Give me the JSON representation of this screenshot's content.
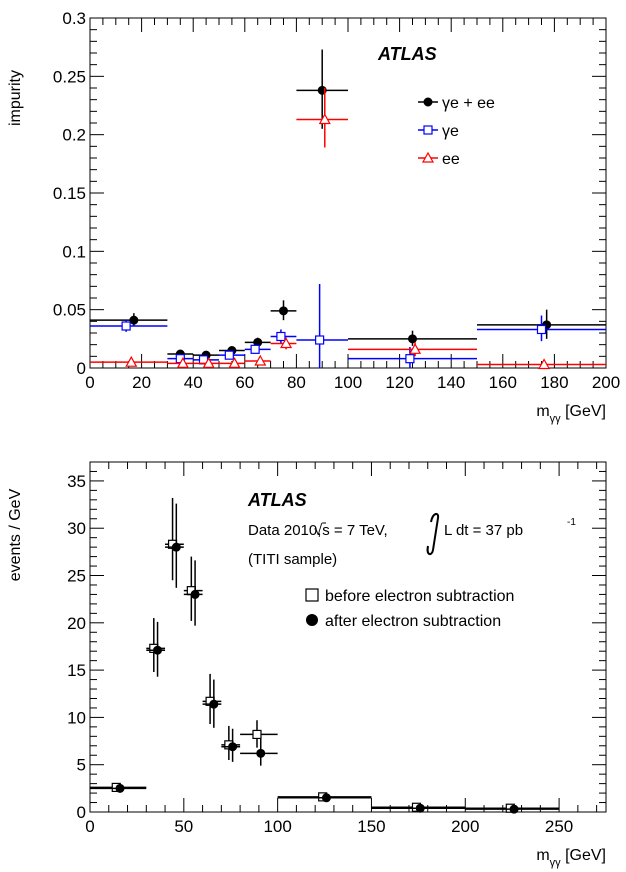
{
  "chart_data": [
    {
      "type": "scatter",
      "title": "",
      "xlabel": "m_{γγ} [GeV]",
      "ylabel": "impurity",
      "xlim": [
        0,
        200
      ],
      "ylim": [
        0,
        0.3
      ],
      "x_ticks": [
        0,
        20,
        40,
        60,
        80,
        100,
        120,
        140,
        160,
        180,
        200
      ],
      "x_tick_labels": [
        "0",
        "20",
        "40",
        "60",
        "80",
        "100",
        "120",
        "140",
        "160",
        "180",
        "200"
      ],
      "y_ticks": [
        0,
        0.05,
        0.1,
        0.15,
        0.2,
        0.25,
        0.3
      ],
      "y_tick_labels": [
        "0",
        "0.05",
        "0.1",
        "0.15",
        "0.2",
        "0.25",
        "0.3"
      ],
      "grid": false,
      "legend_position": "top-right",
      "annotations": {
        "atlas": "ATLAS"
      },
      "series": [
        {
          "name": "γe + ee",
          "marker": "filled-circle",
          "color": "#000000",
          "points": [
            {
              "x": 17,
              "xlo": 0,
              "xhi": 30,
              "y": 0.041,
              "elo": 0.005,
              "ehi": 0.006
            },
            {
              "x": 35,
              "xlo": 30,
              "xhi": 40,
              "y": 0.012,
              "elo": 0.002,
              "ehi": 0.002
            },
            {
              "x": 45,
              "xlo": 40,
              "xhi": 50,
              "y": 0.011,
              "elo": 0.002,
              "ehi": 0.002
            },
            {
              "x": 55,
              "xlo": 50,
              "xhi": 60,
              "y": 0.015,
              "elo": 0.003,
              "ehi": 0.003
            },
            {
              "x": 65,
              "xlo": 60,
              "xhi": 70,
              "y": 0.022,
              "elo": 0.004,
              "ehi": 0.004
            },
            {
              "x": 75,
              "xlo": 70,
              "xhi": 80,
              "y": 0.049,
              "elo": 0.008,
              "ehi": 0.009
            },
            {
              "x": 90,
              "xlo": 80,
              "xhi": 100,
              "y": 0.238,
              "elo": 0.033,
              "ehi": 0.035
            },
            {
              "x": 125,
              "xlo": 100,
              "xhi": 150,
              "y": 0.025,
              "elo": 0.006,
              "ehi": 0.007
            },
            {
              "x": 177,
              "xlo": 150,
              "xhi": 200,
              "y": 0.037,
              "elo": 0.012,
              "ehi": 0.013
            }
          ]
        },
        {
          "name": "γe",
          "marker": "open-square",
          "color": "#0000ff",
          "points": [
            {
              "x": 14,
              "xlo": 0,
              "xhi": 30,
              "y": 0.036,
              "elo": 0.005,
              "ehi": 0.005
            },
            {
              "x": 35,
              "xlo": 30,
              "xhi": 40,
              "y": 0.008,
              "elo": 0.002,
              "ehi": 0.002
            },
            {
              "x": 44,
              "xlo": 40,
              "xhi": 50,
              "y": 0.007,
              "elo": 0.002,
              "ehi": 0.002
            },
            {
              "x": 54,
              "xlo": 50,
              "xhi": 60,
              "y": 0.011,
              "elo": 0.002,
              "ehi": 0.002
            },
            {
              "x": 64,
              "xlo": 60,
              "xhi": 70,
              "y": 0.016,
              "elo": 0.003,
              "ehi": 0.003
            },
            {
              "x": 74,
              "xlo": 70,
              "xhi": 80,
              "y": 0.027,
              "elo": 0.006,
              "ehi": 0.006
            },
            {
              "x": 89,
              "xlo": 80,
              "xhi": 100,
              "y": 0.024,
              "elo": 0.024,
              "ehi": 0.048
            },
            {
              "x": 124,
              "xlo": 100,
              "xhi": 150,
              "y": 0.008,
              "elo": 0.008,
              "ehi": 0.01
            },
            {
              "x": 175,
              "xlo": 150,
              "xhi": 200,
              "y": 0.033,
              "elo": 0.01,
              "ehi": 0.012
            }
          ]
        },
        {
          "name": "ee",
          "marker": "open-triangle",
          "color": "#ff0000",
          "points": [
            {
              "x": 16,
              "xlo": 0,
              "xhi": 30,
              "y": 0.005,
              "elo": 0.002,
              "ehi": 0.002
            },
            {
              "x": 36,
              "xlo": 30,
              "xhi": 40,
              "y": 0.004,
              "elo": 0.001,
              "ehi": 0.001
            },
            {
              "x": 46,
              "xlo": 40,
              "xhi": 50,
              "y": 0.004,
              "elo": 0.001,
              "ehi": 0.001
            },
            {
              "x": 56,
              "xlo": 50,
              "xhi": 60,
              "y": 0.004,
              "elo": 0.001,
              "ehi": 0.001
            },
            {
              "x": 66,
              "xlo": 60,
              "xhi": 70,
              "y": 0.006,
              "elo": 0.002,
              "ehi": 0.002
            },
            {
              "x": 76,
              "xlo": 70,
              "xhi": 80,
              "y": 0.021,
              "elo": 0.005,
              "ehi": 0.005
            },
            {
              "x": 91,
              "xlo": 80,
              "xhi": 100,
              "y": 0.213,
              "elo": 0.024,
              "ehi": 0.027
            },
            {
              "x": 126,
              "xlo": 100,
              "xhi": 150,
              "y": 0.016,
              "elo": 0.006,
              "ehi": 0.006
            },
            {
              "x": 176,
              "xlo": 150,
              "xhi": 200,
              "y": 0.003,
              "elo": 0.001,
              "ehi": 0.001
            }
          ]
        }
      ]
    },
    {
      "type": "scatter",
      "title": "",
      "xlabel": "m_{γγ} [GeV]",
      "ylabel": "events / GeV",
      "xlim": [
        0,
        275
      ],
      "ylim": [
        0,
        37
      ],
      "x_ticks": [
        0,
        50,
        100,
        150,
        200,
        250
      ],
      "x_tick_labels": [
        "0",
        "50",
        "100",
        "150",
        "200",
        "250"
      ],
      "y_ticks": [
        0,
        5,
        10,
        15,
        20,
        25,
        30,
        35
      ],
      "y_tick_labels": [
        "0",
        "5",
        "10",
        "15",
        "20",
        "25",
        "30",
        "35"
      ],
      "grid": false,
      "legend_position": "top-right",
      "annotations": {
        "atlas": "ATLAS",
        "data_prefix": "Data 2010,",
        "sqrt": "√s = 7 TeV,",
        "lumi_l": "L dt  =  37 pb",
        "lumi_sup": "-1",
        "sample": "(TITI sample)"
      },
      "series": [
        {
          "name": "before electron subtraction",
          "marker": "open-square",
          "color": "#000000",
          "points": [
            {
              "x": 14,
              "xlo": 0,
              "xhi": 30,
              "y": 2.6,
              "elo": 0.4,
              "ehi": 0.4
            },
            {
              "x": 34,
              "xlo": 30,
              "xhi": 40,
              "y": 17.3,
              "elo": 2.5,
              "ehi": 3.2
            },
            {
              "x": 44,
              "xlo": 40,
              "xhi": 50,
              "y": 28.3,
              "elo": 3.8,
              "ehi": 4.9
            },
            {
              "x": 54,
              "xlo": 50,
              "xhi": 60,
              "y": 23.4,
              "elo": 3.2,
              "ehi": 3.6
            },
            {
              "x": 64,
              "xlo": 60,
              "xhi": 70,
              "y": 11.7,
              "elo": 2.4,
              "ehi": 2.9
            },
            {
              "x": 74,
              "xlo": 70,
              "xhi": 80,
              "y": 7.1,
              "elo": 1.6,
              "ehi": 2.0
            },
            {
              "x": 89,
              "xlo": 80,
              "xhi": 100,
              "y": 8.2,
              "elo": 1.4,
              "ehi": 1.5
            },
            {
              "x": 124,
              "xlo": 100,
              "xhi": 150,
              "y": 1.6,
              "elo": 0.3,
              "ehi": 0.3
            },
            {
              "x": 174,
              "xlo": 150,
              "xhi": 200,
              "y": 0.5,
              "elo": 0.15,
              "ehi": 0.15
            },
            {
              "x": 224,
              "xlo": 200,
              "xhi": 250,
              "y": 0.4,
              "elo": 0.12,
              "ehi": 0.12
            }
          ]
        },
        {
          "name": "after electron subtraction",
          "marker": "filled-circle",
          "color": "#000000",
          "points": [
            {
              "x": 16,
              "xlo": 0,
              "xhi": 30,
              "y": 2.5,
              "elo": 0.4,
              "ehi": 0.4
            },
            {
              "x": 36,
              "xlo": 30,
              "xhi": 40,
              "y": 17.1,
              "elo": 2.8,
              "ehi": 3.0
            },
            {
              "x": 46,
              "xlo": 40,
              "xhi": 50,
              "y": 28.0,
              "elo": 4.3,
              "ehi": 4.6
            },
            {
              "x": 56,
              "xlo": 50,
              "xhi": 60,
              "y": 23.0,
              "elo": 3.3,
              "ehi": 3.6
            },
            {
              "x": 66,
              "xlo": 60,
              "xhi": 70,
              "y": 11.4,
              "elo": 2.5,
              "ehi": 2.6
            },
            {
              "x": 76,
              "xlo": 70,
              "xhi": 80,
              "y": 6.9,
              "elo": 1.6,
              "ehi": 1.9
            },
            {
              "x": 91,
              "xlo": 80,
              "xhi": 100,
              "y": 6.2,
              "elo": 1.3,
              "ehi": 1.6
            },
            {
              "x": 126,
              "xlo": 100,
              "xhi": 150,
              "y": 1.5,
              "elo": 0.3,
              "ehi": 0.3
            },
            {
              "x": 176,
              "xlo": 150,
              "xhi": 200,
              "y": 0.4,
              "elo": 0.15,
              "ehi": 0.15
            },
            {
              "x": 226,
              "xlo": 200,
              "xhi": 250,
              "y": 0.3,
              "elo": 0.12,
              "ehi": 0.12
            }
          ]
        }
      ]
    }
  ]
}
